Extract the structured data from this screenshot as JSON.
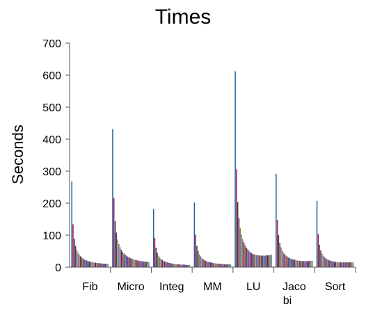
{
  "chart_data": {
    "type": "bar",
    "title": "Times",
    "xlabel": "",
    "ylabel": "Seconds",
    "ylim": [
      0,
      700
    ],
    "yticks": [
      0,
      100,
      200,
      300,
      400,
      500,
      600,
      700
    ],
    "grid": false,
    "legend": "none",
    "categories": [
      "Fib",
      "Micro",
      "Integ",
      "MM",
      "LU",
      "Jaco\nbi",
      "Sort"
    ],
    "bar_colors": [
      "#1f5e9e",
      "#b0155c",
      "#2b4a2b",
      "#6a2e7e",
      "#8a8a2a",
      "#4a7ab0",
      "#c04a8a",
      "#3a3a3a",
      "#9a5a3a",
      "#7a2a5a",
      "#2a6a6a",
      "#8a3a9a"
    ],
    "groups": [
      {
        "category": "Fib",
        "values": [
          268,
          134,
          89,
          67,
          54,
          45,
          38,
          34,
          30,
          27,
          24,
          22,
          21,
          19,
          18,
          17,
          16,
          15,
          14,
          14,
          13,
          13,
          12,
          12,
          12,
          11,
          11,
          11,
          11,
          10
        ]
      },
      {
        "category": "Micro",
        "values": [
          432,
          216,
          144,
          108,
          86,
          72,
          62,
          54,
          48,
          43,
          39,
          36,
          33,
          31,
          29,
          27,
          25,
          24,
          23,
          22,
          21,
          20,
          19,
          19,
          18,
          18,
          17,
          17,
          17,
          16
        ]
      },
      {
        "category": "Integ",
        "values": [
          182,
          91,
          61,
          45,
          36,
          30,
          26,
          23,
          20,
          18,
          17,
          15,
          14,
          13,
          12,
          11,
          11,
          10,
          10,
          9,
          9,
          9,
          8,
          8,
          8,
          8,
          7,
          7,
          7,
          7
        ]
      },
      {
        "category": "MM",
        "values": [
          202,
          101,
          67,
          51,
          40,
          34,
          29,
          25,
          22,
          20,
          18,
          17,
          16,
          15,
          14,
          13,
          12,
          12,
          11,
          11,
          11,
          10,
          10,
          10,
          10,
          9,
          9,
          9,
          9,
          9
        ]
      },
      {
        "category": "LU",
        "values": [
          612,
          306,
          204,
          153,
          122,
          102,
          87,
          77,
          68,
          61,
          56,
          51,
          47,
          44,
          42,
          40,
          39,
          38,
          37,
          37,
          36,
          36,
          36,
          36,
          36,
          37,
          37,
          38,
          38,
          39
        ]
      },
      {
        "category": "Jaco\nbi",
        "values": [
          292,
          148,
          100,
          76,
          62,
          52,
          45,
          40,
          36,
          33,
          30,
          28,
          26,
          25,
          24,
          23,
          22,
          21,
          20,
          20,
          19,
          19,
          19,
          19,
          19,
          19,
          19,
          20,
          20,
          20
        ]
      },
      {
        "category": "Sort",
        "values": [
          207,
          104,
          70,
          53,
          43,
          36,
          31,
          28,
          25,
          23,
          21,
          20,
          19,
          18,
          17,
          17,
          16,
          16,
          15,
          15,
          15,
          15,
          15,
          15,
          15,
          15,
          15,
          15,
          15,
          15
        ]
      }
    ]
  }
}
